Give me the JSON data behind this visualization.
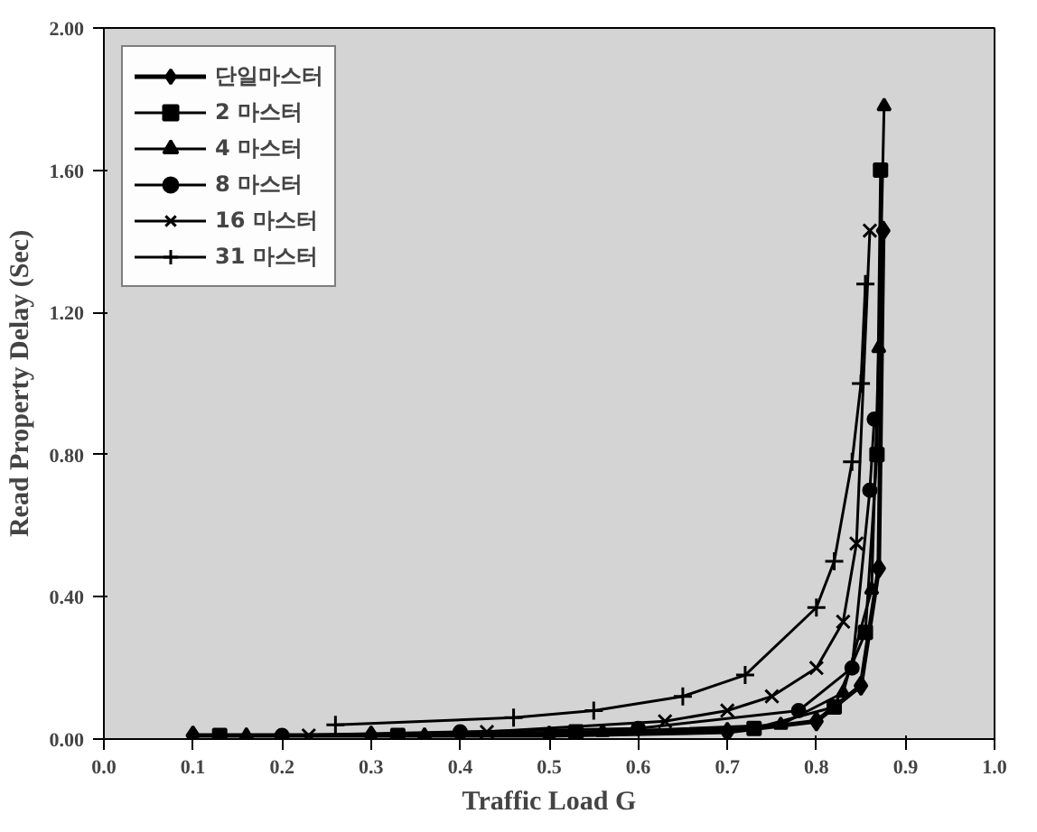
{
  "chart_data": {
    "type": "line",
    "xlabel": "Traffic Load G",
    "ylabel": "Read Property Delay (Sec)",
    "xlim": [
      0,
      1
    ],
    "ylim": [
      0,
      2
    ],
    "xticks": [
      {
        "value": 0,
        "label": "0.0"
      },
      {
        "value": 0.1,
        "label": "0.1"
      },
      {
        "value": 0.2,
        "label": "0.2"
      },
      {
        "value": 0.3,
        "label": "0.3"
      },
      {
        "value": 0.4,
        "label": "0.4"
      },
      {
        "value": 0.5,
        "label": "0.5"
      },
      {
        "value": 0.6,
        "label": "0.6"
      },
      {
        "value": 0.7,
        "label": "0.7"
      },
      {
        "value": 0.8,
        "label": "0.8"
      },
      {
        "value": 0.9,
        "label": "0.9"
      },
      {
        "value": 1,
        "label": "1.0"
      }
    ],
    "yticks": [
      {
        "value": 0,
        "label": "0.00"
      },
      {
        "value": 0.4,
        "label": "0.40"
      },
      {
        "value": 0.8,
        "label": "0.80"
      },
      {
        "value": 1.2,
        "label": "1.20"
      },
      {
        "value": 1.6,
        "label": "1.60"
      },
      {
        "value": 2,
        "label": "2.00"
      }
    ],
    "grid": false,
    "legend": "top left",
    "line_style": "solid",
    "series": [
      {
        "name": "단일마스터",
        "color": "#000000",
        "marker": "diamond",
        "x": [
          0.1,
          0.3,
          0.5,
          0.7,
          0.8,
          0.85,
          0.87,
          0.875
        ],
        "values": [
          0.01,
          0.01,
          0.01,
          0.02,
          0.05,
          0.15,
          0.48,
          1.43
        ]
      },
      {
        "name": "2 마스터",
        "color": "#000000",
        "marker": "square",
        "x": [
          0.13,
          0.33,
          0.53,
          0.73,
          0.82,
          0.855,
          0.868,
          0.872
        ],
        "values": [
          0.01,
          0.01,
          0.02,
          0.03,
          0.09,
          0.3,
          0.8,
          1.6
        ]
      },
      {
        "name": "4 마스터",
        "color": "#000000",
        "marker": "triangle",
        "x": [
          0.16,
          0.36,
          0.56,
          0.76,
          0.83,
          0.862,
          0.87,
          0.876
        ],
        "values": [
          0.01,
          0.01,
          0.02,
          0.04,
          0.13,
          0.42,
          1.1,
          1.78
        ]
      },
      {
        "name": "8 마스터",
        "color": "#000000",
        "marker": "circle",
        "x": [
          0.2,
          0.4,
          0.6,
          0.78,
          0.84,
          0.86,
          0.865
        ],
        "values": [
          0.01,
          0.02,
          0.03,
          0.08,
          0.2,
          0.7,
          0.9
        ]
      },
      {
        "name": "16 마스터",
        "color": "#000000",
        "marker": "cross",
        "x": [
          0.23,
          0.43,
          0.63,
          0.7,
          0.75,
          0.8,
          0.83,
          0.845,
          0.86
        ],
        "values": [
          0.01,
          0.02,
          0.05,
          0.08,
          0.12,
          0.2,
          0.33,
          0.55,
          1.43
        ]
      },
      {
        "name": "31 마스터",
        "color": "#000000",
        "marker": "plus",
        "x": [
          0.26,
          0.46,
          0.55,
          0.65,
          0.72,
          0.8,
          0.82,
          0.84,
          0.85,
          0.855
        ],
        "values": [
          0.04,
          0.06,
          0.08,
          0.12,
          0.18,
          0.37,
          0.5,
          0.78,
          1.0,
          1.28
        ]
      }
    ]
  }
}
